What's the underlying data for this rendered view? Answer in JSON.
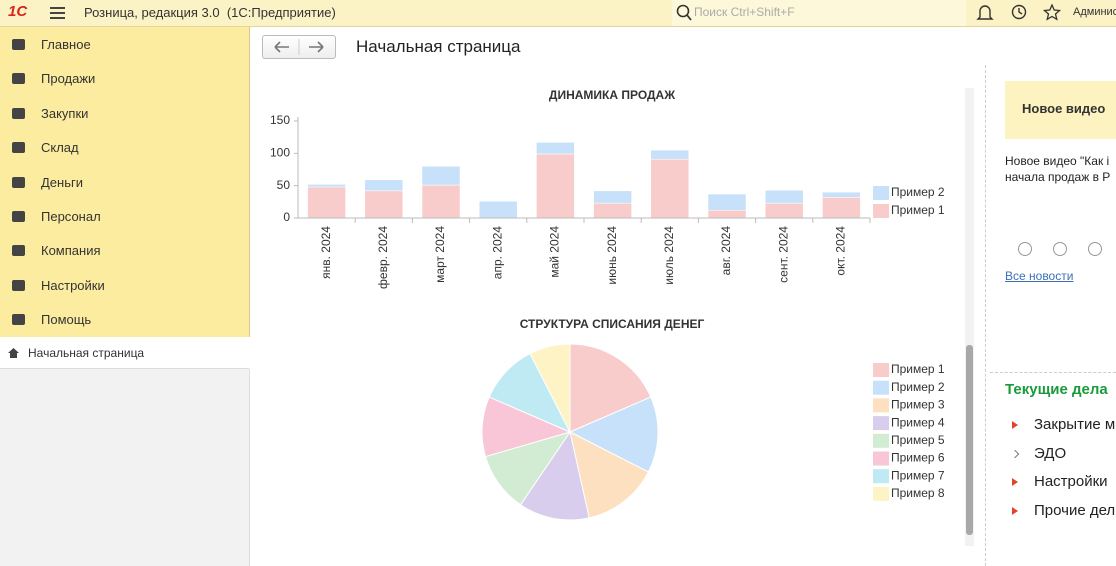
{
  "header": {
    "logo": "1С",
    "app_title": "Розница, редакция 3.0  (1С:Предприятие)",
    "search_placeholder": "Поиск Ctrl+Shift+F",
    "user": "Админис"
  },
  "sidebar": {
    "items": [
      "Главное",
      "Продажи",
      "Закупки",
      "Склад",
      "Деньги",
      "Персонал",
      "Компания",
      "Настройки",
      "Помощь"
    ],
    "open_pages": [
      "Начальная страница"
    ]
  },
  "page_title": "Начальная страница",
  "chart_data": [
    {
      "type": "bar",
      "stacked": true,
      "title": "ДИНАМИКА ПРОДАЖ",
      "categories": [
        "янв. 2024",
        "февр. 2024",
        "март 2024",
        "апр. 2024",
        "май 2024",
        "июнь 2024",
        "июль 2024",
        "авг. 2024",
        "сент. 2024",
        "окт. 2024"
      ],
      "series": [
        {
          "name": "Пример 1",
          "color": "#f9cccc",
          "values": [
            48,
            42,
            51,
            0,
            99,
            23,
            91,
            12,
            23,
            32
          ]
        },
        {
          "name": "Пример 2",
          "color": "#c6e1f9",
          "values": [
            4,
            17,
            29,
            26,
            18,
            19,
            14,
            25,
            20,
            8
          ]
        }
      ],
      "ylim": [
        0,
        150
      ],
      "yticks": [
        0,
        50,
        100,
        150
      ],
      "grid": false,
      "legend": "right"
    },
    {
      "type": "pie",
      "title": "СТРУКТУРА СПИСАНИЯ ДЕНЕГ",
      "categories": [
        "Пример 1",
        "Пример 2",
        "Пример 3",
        "Пример 4",
        "Пример 5",
        "Пример 6",
        "Пример 7",
        "Пример 8"
      ],
      "values": [
        18.5,
        14,
        14,
        13,
        11,
        11,
        11,
        7.5
      ],
      "colors": [
        "#f9cccc",
        "#c6e1f9",
        "#fde0bf",
        "#d8cdec",
        "#d2ebd3",
        "#f8c6d6",
        "#bfeaf3",
        "#fdf3c4"
      ],
      "legend": "right"
    }
  ],
  "news": {
    "title": "Новое видео",
    "text_lines": [
      "Новое видео \"Как і",
      "начала продаж в Р"
    ],
    "all_link": "Все новости"
  },
  "tasks": {
    "title": "Текущие дела",
    "items": [
      "Закрытие м",
      "ЭДО",
      "Настройки",
      "Прочие дел"
    ]
  }
}
